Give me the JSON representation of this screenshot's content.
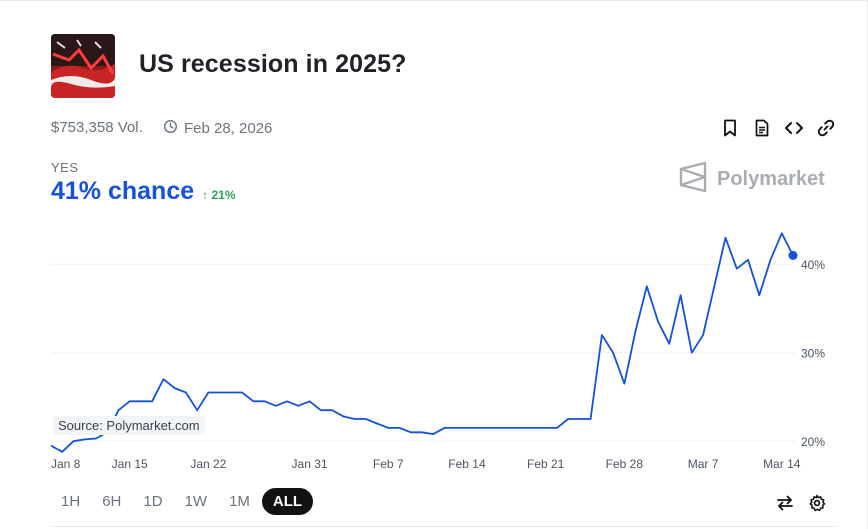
{
  "market": {
    "title": "US recession in 2025?",
    "volume": "$753,358 Vol.",
    "end_date": "Feb 28, 2026"
  },
  "icons": {
    "thumbnail": "us-flag-chart-thumbnail",
    "clock": "clock-icon",
    "bookmark": "bookmark-icon",
    "document": "document-icon",
    "embed": "code-icon",
    "link": "link-icon",
    "swap": "swap-arrows-icon",
    "settings": "gear-icon",
    "brand_logo": "polymarket-logo-icon"
  },
  "outcome": {
    "label": "YES",
    "chance": "41% chance",
    "delta": "21%"
  },
  "brand": {
    "name": "Polymarket"
  },
  "colors": {
    "line": "#1452d9",
    "delta_up": "#27a55a",
    "accent": "#1452d9"
  },
  "chart_source": "Source: Polymarket.com",
  "time_ranges": {
    "options": [
      "1H",
      "6H",
      "1D",
      "1W",
      "1M",
      "ALL"
    ],
    "selected": "ALL"
  },
  "chart_data": {
    "type": "line",
    "x_labels": [
      "Jan 8",
      "Jan 15",
      "Jan 22",
      "Jan 31",
      "Feb 7",
      "Feb 14",
      "Feb 21",
      "Feb 28",
      "Mar 7",
      "Mar 14"
    ],
    "y_tick_labels": [
      "20%",
      "30%",
      "40%"
    ],
    "y_ticks": [
      20,
      30,
      40
    ],
    "ylim": [
      19,
      45
    ],
    "grid": true,
    "series": [
      {
        "x": [
          "Jan 8",
          "Jan 9",
          "Jan 10",
          "Jan 11",
          "Jan 12",
          "Jan 13",
          "Jan 14",
          "Jan 15",
          "Jan 16",
          "Jan 17",
          "Jan 18",
          "Jan 19",
          "Jan 20",
          "Jan 21",
          "Jan 22",
          "Jan 23",
          "Jan 24",
          "Jan 25",
          "Jan 26",
          "Jan 27",
          "Jan 28",
          "Jan 29",
          "Jan 30",
          "Jan 31",
          "Feb 1",
          "Feb 2",
          "Feb 3",
          "Feb 4",
          "Feb 5",
          "Feb 6",
          "Feb 7",
          "Feb 8",
          "Feb 9",
          "Feb 10",
          "Feb 11",
          "Feb 12",
          "Feb 13",
          "Feb 14",
          "Feb 15",
          "Feb 16",
          "Feb 17",
          "Feb 18",
          "Feb 19",
          "Feb 20",
          "Feb 21",
          "Feb 22",
          "Feb 23",
          "Feb 24",
          "Feb 25",
          "Feb 26",
          "Feb 27",
          "Feb 28",
          "Mar 1",
          "Mar 2",
          "Mar 3",
          "Mar 4",
          "Mar 5",
          "Mar 6",
          "Mar 7",
          "Mar 8",
          "Mar 9",
          "Mar 10",
          "Mar 11",
          "Mar 12",
          "Mar 13",
          "Mar 14",
          "Mar 15"
        ],
        "values": [
          19.5,
          18.8,
          20.0,
          20.2,
          20.3,
          21.0,
          23.5,
          24.5,
          24.5,
          24.5,
          27.0,
          26.0,
          25.5,
          23.5,
          25.5,
          25.5,
          25.5,
          25.5,
          24.5,
          24.5,
          24.0,
          24.5,
          24.0,
          24.5,
          23.5,
          23.5,
          22.8,
          22.5,
          22.5,
          22.0,
          21.5,
          21.5,
          21.0,
          21.0,
          20.8,
          21.5,
          21.5,
          21.5,
          21.5,
          21.5,
          21.5,
          21.5,
          21.5,
          21.5,
          21.5,
          21.5,
          22.5,
          22.5,
          22.5,
          32.0,
          30.0,
          26.5,
          32.5,
          37.5,
          33.5,
          31.0,
          36.5,
          30.0,
          32.0,
          37.5,
          43.0,
          39.5,
          40.5,
          36.5,
          40.5,
          43.5,
          41.0
        ]
      }
    ],
    "current_value": 41
  }
}
